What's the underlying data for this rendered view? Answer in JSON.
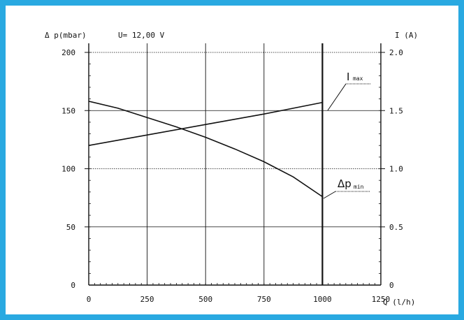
{
  "chart_data": {
    "type": "line",
    "title": "U= 12,00 V",
    "xlabel": "Q (l/h)",
    "ylabel_left": "Δ p(mbar)",
    "ylabel_right": "I (A)",
    "x_ticks": [
      "0",
      "250",
      "500",
      "750",
      "1000",
      "1250"
    ],
    "y_left_ticks": [
      "0",
      "50",
      "100",
      "150",
      "200"
    ],
    "y_right_ticks": [
      "0",
      "0.5",
      "1.0",
      "1.5",
      "2.0"
    ],
    "xlim": [
      0,
      1250
    ],
    "ylim_left": [
      0,
      200
    ],
    "ylim_right": [
      0,
      2.0
    ],
    "max_flow_marker": 1000,
    "series": [
      {
        "name_main": "I",
        "name_sub": "max",
        "axis": "right",
        "x": [
          0,
          250,
          500,
          750,
          1000
        ],
        "values": [
          1.2,
          1.29,
          1.38,
          1.47,
          1.57
        ]
      },
      {
        "name_main": "Δp",
        "name_sub": "min",
        "axis": "left",
        "x": [
          0,
          125,
          250,
          375,
          500,
          625,
          750,
          875,
          1000
        ],
        "values": [
          158,
          152,
          144,
          136,
          127,
          117,
          106,
          93,
          76
        ]
      }
    ]
  }
}
